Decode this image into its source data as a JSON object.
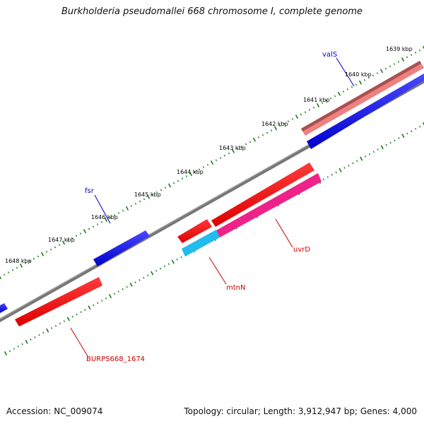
{
  "title": "Burkholderia pseudomallei 668 chromosome I, complete genome",
  "accession": "Accession: NC_009074",
  "topology": "Topology: circular; Length: 3,912,947 bp; Genes: 4,000",
  "scale_labels": [
    "1639 kbp",
    "1640 kbp",
    "1641 kbp",
    "1642 kbp",
    "1643 kbp",
    "1644 kbp",
    "1645 kbp",
    "1646 kbp",
    "1647 kbp",
    "1648 kbp"
  ],
  "gene_labels": {
    "valS": "valS",
    "fsr": "fsr",
    "uvrD": "uvrD",
    "mtnN": "mtnN",
    "burps": "BURPS668_1674"
  },
  "colors": {
    "forward_cds": "#0000dd",
    "reverse_cds": "#ee0000",
    "forward_label": "#0000cc",
    "reverse_label": "#cc0000",
    "backbone": "#777777",
    "ticks": "#1a7a1a",
    "highlight_pink": "#ee8080",
    "magenta": "#ee2288",
    "cyan": "#22bbee"
  }
}
